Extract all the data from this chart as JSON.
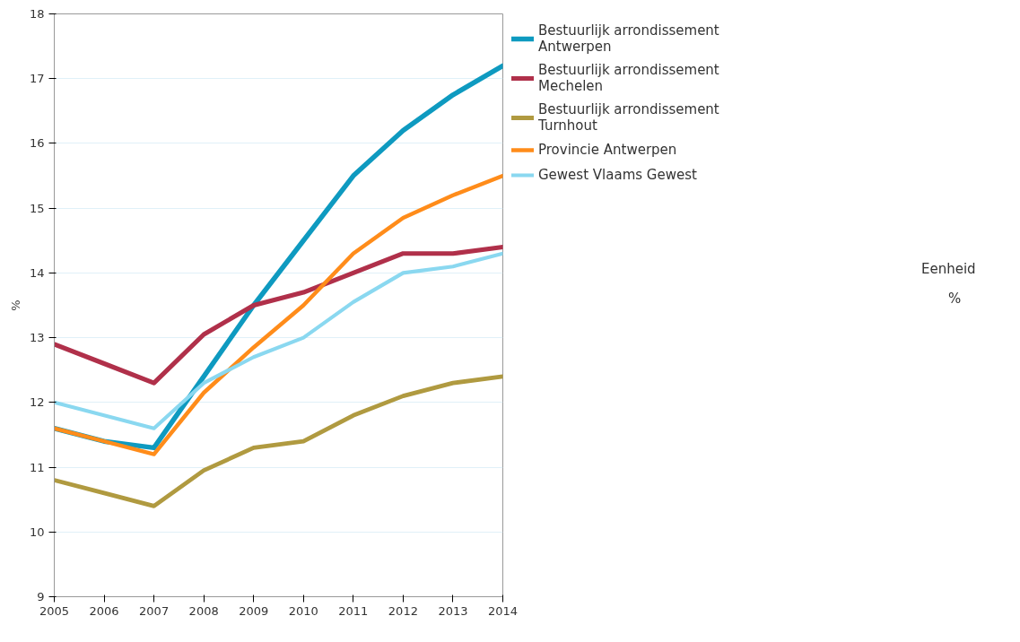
{
  "chart_data": {
    "type": "line",
    "ylabel": "%",
    "x": [
      2005,
      2006,
      2007,
      2008,
      2009,
      2010,
      2011,
      2012,
      2013,
      2014
    ],
    "xlim": [
      2005,
      2014
    ],
    "xticks": [
      2005,
      2006,
      2007,
      2008,
      2009,
      2010,
      2011,
      2012,
      2013,
      2014
    ],
    "ylim": [
      9,
      18
    ],
    "yticks": [
      9,
      10,
      11,
      12,
      13,
      14,
      15,
      16,
      17,
      18
    ],
    "grid": "y",
    "legend": "top right",
    "marker": "none",
    "line_style": "solid",
    "annotations": [
      "Eenheid",
      "%"
    ],
    "series": [
      {
        "name": "Bestuurlijk arrondissement Antwerpen",
        "color": "#0e9ac0",
        "values": [
          11.6,
          11.4,
          11.3,
          12.4,
          13.5,
          14.5,
          15.5,
          16.2,
          16.75,
          17.2
        ]
      },
      {
        "name": "Bestuurlijk arrondissement Mechelen",
        "color": "#b0304a",
        "values": [
          12.9,
          12.6,
          12.3,
          13.05,
          13.5,
          13.7,
          14.0,
          14.3,
          14.3,
          14.4
        ]
      },
      {
        "name": "Bestuurlijk arrondissement Turnhout",
        "color": "#b09a40",
        "values": [
          10.8,
          10.6,
          10.4,
          10.95,
          11.3,
          11.4,
          11.8,
          12.1,
          12.3,
          12.4
        ]
      },
      {
        "name": "Provincie Antwerpen",
        "color": "#ff8c1a",
        "values": [
          11.6,
          11.4,
          11.2,
          12.15,
          12.85,
          13.5,
          14.3,
          14.85,
          15.2,
          15.5
        ]
      },
      {
        "name": "Gewest Vlaams Gewest",
        "color": "#8ad8f0",
        "values": [
          12.0,
          11.8,
          11.6,
          12.3,
          12.7,
          13.0,
          13.55,
          14.0,
          14.1,
          14.3
        ]
      }
    ]
  }
}
